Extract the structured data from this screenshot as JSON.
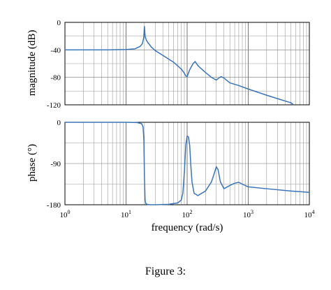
{
  "figure": {
    "caption": "Figure 3:"
  },
  "chart_data": [
    {
      "type": "line",
      "ylabel": "magnitude (dB)",
      "xlabel": "",
      "xscale": "log",
      "xlim": [
        1,
        10000
      ],
      "ylim": [
        -120,
        0
      ],
      "yticks": [
        "0",
        "-40",
        "-80",
        "-120"
      ],
      "grid": true,
      "series": [
        {
          "color": "#3a74b8",
          "x": [
            1,
            2,
            5,
            10,
            14,
            17,
            18.5,
            19.5,
            20,
            20.5,
            21.5,
            23,
            26,
            30,
            40,
            60,
            80,
            90,
            95,
            100,
            110,
            125,
            135,
            150,
            200,
            250,
            300,
            330,
            360,
            400,
            500,
            700,
            1000,
            2000,
            3000,
            5000,
            5500
          ],
          "y": [
            -40,
            -40,
            -40,
            -39.5,
            -38.5,
            -35,
            -31,
            -22,
            -6,
            -20,
            -26,
            -30,
            -36,
            -41,
            -48,
            -58,
            -68,
            -74,
            -78,
            -79,
            -69,
            -60,
            -57,
            -63,
            -73,
            -80,
            -84,
            -81,
            -79,
            -81,
            -88,
            -92,
            -97,
            -106,
            -111,
            -117,
            -120
          ]
        }
      ]
    },
    {
      "type": "line",
      "ylabel": "phase (°)",
      "xlabel": "frequency (rad/s)",
      "xscale": "log",
      "xlim": [
        1,
        10000
      ],
      "ylim": [
        -180,
        0
      ],
      "yticks": [
        "0",
        "-90",
        "-180"
      ],
      "xticks": [
        "10^0",
        "10^1",
        "10^2",
        "10^3",
        "10^4"
      ],
      "grid": true,
      "series": [
        {
          "color": "#3a74b8",
          "x": [
            1,
            5,
            10,
            15,
            18,
            19,
            19.6,
            20,
            20.5,
            21,
            22,
            25,
            30,
            50,
            70,
            80,
            85,
            90,
            95,
            100,
            105,
            110,
            115,
            120,
            130,
            150,
            200,
            250,
            280,
            300,
            320,
            350,
            400,
            500,
            600,
            700,
            800,
            1000,
            2000,
            5000,
            10000
          ],
          "y": [
            0,
            0,
            0,
            -0.5,
            -3,
            -10,
            -40,
            -120,
            -170,
            -177,
            -179,
            -180,
            -180,
            -179,
            -176,
            -170,
            -155,
            -110,
            -50,
            -30,
            -32,
            -50,
            -95,
            -130,
            -155,
            -160,
            -150,
            -130,
            -110,
            -97,
            -103,
            -130,
            -145,
            -138,
            -133,
            -131,
            -135,
            -141,
            -145,
            -150,
            -153
          ]
        }
      ]
    }
  ]
}
